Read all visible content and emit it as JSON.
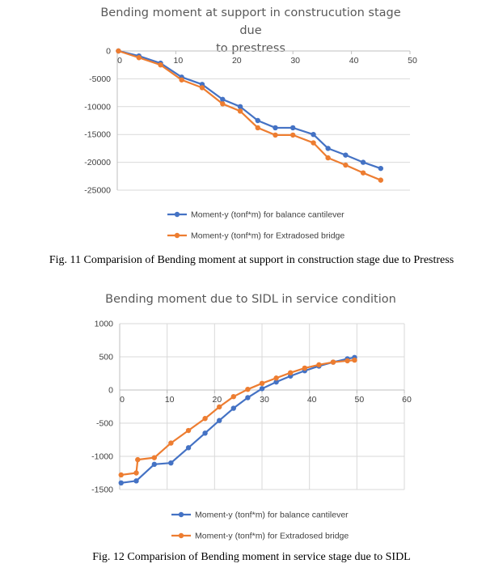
{
  "chart_data": [
    {
      "type": "line",
      "title_lines": [
        "Bending moment at support in construcution stage due",
        "to prestress"
      ],
      "xlim": [
        0,
        50
      ],
      "ylim": [
        -25000,
        0
      ],
      "xticks": [
        0,
        10,
        20,
        30,
        40,
        50
      ],
      "yticks": [
        0,
        -5000,
        -10000,
        -15000,
        -20000,
        -25000
      ],
      "x_axis_position": "top",
      "grid": "horizontal",
      "legend_position": "bottom",
      "series": [
        {
          "name": "Moment-y (tonf*m) for balance cantilever",
          "color": "#4472C4",
          "x": [
            0.2,
            3.7,
            7.4,
            11,
            14.5,
            18,
            21,
            24,
            27,
            30,
            33.5,
            36,
            39,
            42,
            45
          ],
          "y": [
            0,
            -900,
            -2200,
            -4700,
            -6000,
            -8700,
            -10000,
            -12500,
            -13800,
            -13800,
            -15000,
            -17500,
            -18700,
            -20000,
            -21100
          ]
        },
        {
          "name": "Moment-y (tonf*m) for Extradosed bridge",
          "color": "#ED7D31",
          "x": [
            0.2,
            3.7,
            7.4,
            11,
            14.5,
            18,
            21,
            24,
            27,
            30,
            33.5,
            36,
            39,
            42,
            45
          ],
          "y": [
            0,
            -1200,
            -2500,
            -5200,
            -6600,
            -9500,
            -10800,
            -13800,
            -15100,
            -15100,
            -16500,
            -19200,
            -20500,
            -21900,
            -23200
          ]
        }
      ]
    },
    {
      "type": "line",
      "title_lines": [
        "Bending moment due to SIDL in service condition"
      ],
      "xlim": [
        0,
        60
      ],
      "ylim": [
        -1500,
        1000
      ],
      "xticks": [
        0,
        10,
        20,
        30,
        40,
        50,
        60
      ],
      "yticks": [
        1000,
        500,
        0,
        -500,
        -1000,
        -1500
      ],
      "x_axis_position": "zero",
      "grid": "both",
      "legend_position": "bottom",
      "series": [
        {
          "name": "Moment-y (tonf*m) for balance cantilever",
          "color": "#4472C4",
          "x": [
            0.3,
            3.5,
            7.3,
            10.8,
            14.5,
            18,
            21,
            24,
            27,
            30,
            33,
            36,
            39,
            42,
            45,
            48,
            49.5
          ],
          "y": [
            -1400,
            -1370,
            -1120,
            -1100,
            -870,
            -650,
            -460,
            -275,
            -115,
            20,
            120,
            210,
            290,
            360,
            420,
            470,
            490
          ]
        },
        {
          "name": "Moment-y (tonf*m) for Extradosed bridge",
          "color": "#ED7D31",
          "x": [
            0.3,
            3.5,
            3.8,
            7.3,
            10.8,
            14.5,
            18,
            21,
            24,
            27,
            30,
            33,
            36,
            39,
            42,
            45,
            48,
            49.5
          ],
          "y": [
            -1280,
            -1250,
            -1050,
            -1020,
            -800,
            -610,
            -430,
            -255,
            -100,
            10,
            100,
            180,
            260,
            330,
            380,
            420,
            440,
            450
          ]
        }
      ]
    }
  ],
  "captions": {
    "fig11": "Fig. 11 Comparision of Bending moment at support in construction stage due to Prestress",
    "fig12": "Fig. 12 Comparision of Bending moment in service stage due to SIDL"
  }
}
